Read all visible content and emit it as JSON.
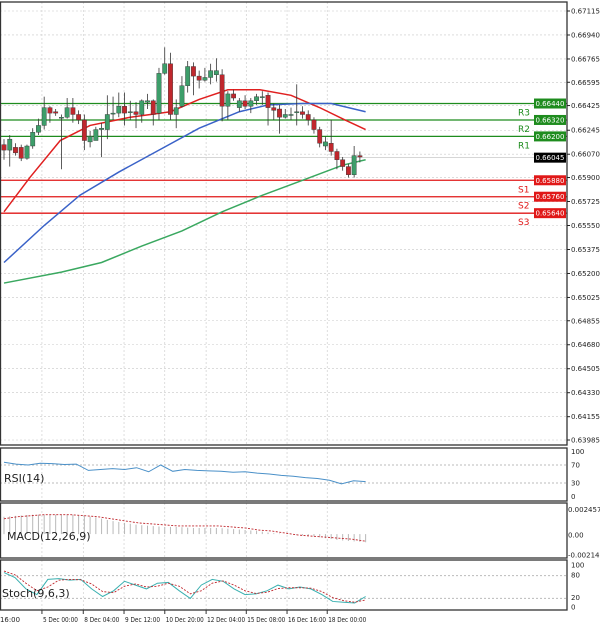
{
  "chart_data": {
    "type": "candlestick",
    "price_axis": {
      "ticks": [
        "0.67115",
        "0.66940",
        "0.66765",
        "0.66595",
        "0.66425",
        "0.66245",
        "0.66070",
        "0.65900",
        "0.65725",
        "0.65550",
        "0.65375",
        "0.65200",
        "0.65025",
        "0.64855",
        "0.64680",
        "0.64505",
        "0.64330",
        "0.64155",
        "0.63985"
      ],
      "range": [
        0.63985,
        0.67115
      ]
    },
    "time_axis": {
      "labels": [
        {
          "text": "16:00",
          "bar": 0
        },
        {
          "text": "5 Dec 00:00",
          "bar": 3.3
        },
        {
          "text": "8 Dec 04:00",
          "bar": 10.5
        },
        {
          "text": "9 Dec 12:00",
          "bar": 17.6
        },
        {
          "text": "10 Dec 20:00",
          "bar": 24.7
        },
        {
          "text": "12 Dec 04:00",
          "bar": 31.9
        },
        {
          "text": "15 Dec 08:00",
          "bar": 38.9
        },
        {
          "text": "16 Dec 16:00",
          "bar": 46
        },
        {
          "text": "18 Dec 00:00",
          "bar": 53
        }
      ]
    },
    "ohlc_columns": [
      "open",
      "high",
      "low",
      "close"
    ],
    "candles": [
      [
        0.6614,
        0.6618,
        0.6603,
        0.661
      ],
      [
        0.661,
        0.6621,
        0.6598,
        0.6618
      ],
      [
        0.6612,
        0.6615,
        0.6606,
        0.6608
      ],
      [
        0.6612,
        0.6614,
        0.6602,
        0.6604
      ],
      [
        0.6604,
        0.6614,
        0.6603,
        0.6613
      ],
      [
        0.6613,
        0.6626,
        0.6611,
        0.6623
      ],
      [
        0.6623,
        0.6633,
        0.6621,
        0.6628
      ],
      [
        0.6628,
        0.6649,
        0.6625,
        0.6641
      ],
      [
        0.6641,
        0.6642,
        0.663,
        0.6637
      ],
      [
        0.6638,
        0.664,
        0.6635,
        0.6637
      ],
      [
        0.6634,
        0.6636,
        0.6596,
        0.6634
      ],
      [
        0.6634,
        0.6648,
        0.6633,
        0.6641
      ],
      [
        0.6641,
        0.6648,
        0.663,
        0.6636
      ],
      [
        0.6636,
        0.6639,
        0.6629,
        0.6632
      ],
      [
        0.6632,
        0.6636,
        0.661,
        0.6617
      ],
      [
        0.6616,
        0.6624,
        0.6612,
        0.662
      ],
      [
        0.6617,
        0.6627,
        0.6617,
        0.6625
      ],
      [
        0.6625,
        0.663,
        0.6605,
        0.6626
      ],
      [
        0.6625,
        0.665,
        0.6618,
        0.6636
      ],
      [
        0.6637,
        0.6649,
        0.6632,
        0.6637
      ],
      [
        0.6637,
        0.6652,
        0.6634,
        0.6642
      ],
      [
        0.6642,
        0.6652,
        0.6628,
        0.6637
      ],
      [
        0.6638,
        0.6646,
        0.6632,
        0.6638
      ],
      [
        0.6638,
        0.6645,
        0.6626,
        0.6636
      ],
      [
        0.6636,
        0.6647,
        0.663,
        0.6646
      ],
      [
        0.6645,
        0.6651,
        0.664,
        0.6646
      ],
      [
        0.6646,
        0.6647,
        0.6628,
        0.6636
      ],
      [
        0.6637,
        0.667,
        0.6632,
        0.6666
      ],
      [
        0.6666,
        0.6685,
        0.6665,
        0.6673
      ],
      [
        0.6673,
        0.6681,
        0.6632,
        0.6636
      ],
      [
        0.6636,
        0.6647,
        0.6626,
        0.6641
      ],
      [
        0.6642,
        0.6664,
        0.6641,
        0.6657
      ],
      [
        0.6657,
        0.6675,
        0.6652,
        0.6671
      ],
      [
        0.6671,
        0.6674,
        0.665,
        0.6664
      ],
      [
        0.6664,
        0.6668,
        0.6655,
        0.6661
      ],
      [
        0.6661,
        0.667,
        0.666,
        0.6663
      ],
      [
        0.6663,
        0.6673,
        0.6658,
        0.6668
      ],
      [
        0.6665,
        0.6677,
        0.666,
        0.6668
      ],
      [
        0.6665,
        0.6669,
        0.6631,
        0.6642
      ],
      [
        0.6642,
        0.6653,
        0.6632,
        0.6651
      ],
      [
        0.6651,
        0.6654,
        0.6646,
        0.6648
      ],
      [
        0.6641,
        0.6648,
        0.6638,
        0.6646
      ],
      [
        0.6646,
        0.665,
        0.664,
        0.6642
      ],
      [
        0.6642,
        0.6648,
        0.6637,
        0.6646
      ],
      [
        0.6646,
        0.6651,
        0.6643,
        0.6649
      ],
      [
        0.6649,
        0.6653,
        0.6643,
        0.6649
      ],
      [
        0.665,
        0.6652,
        0.6628,
        0.6641
      ],
      [
        0.6641,
        0.6644,
        0.6632,
        0.6639
      ],
      [
        0.664,
        0.6643,
        0.6622,
        0.6634
      ],
      [
        0.6634,
        0.664,
        0.6633,
        0.6636
      ],
      [
        0.6636,
        0.6641,
        0.6632,
        0.6636
      ],
      [
        0.6638,
        0.6658,
        0.6628,
        0.6638
      ],
      [
        0.6638,
        0.6642,
        0.6633,
        0.6636
      ],
      [
        0.6636,
        0.6639,
        0.6628,
        0.6632
      ],
      [
        0.6632,
        0.6634,
        0.6622,
        0.6625
      ],
      [
        0.6625,
        0.6627,
        0.6612,
        0.6615
      ],
      [
        0.6613,
        0.662,
        0.661,
        0.6616
      ],
      [
        0.6615,
        0.6632,
        0.6606,
        0.6609
      ],
      [
        0.6609,
        0.6611,
        0.6596,
        0.6603
      ],
      [
        0.6603,
        0.6605,
        0.6595,
        0.6598
      ],
      [
        0.6598,
        0.66,
        0.659,
        0.6592
      ],
      [
        0.6592,
        0.6613,
        0.659,
        0.6606
      ],
      [
        0.6606,
        0.6609,
        0.6601,
        0.6605
      ]
    ],
    "moving_averages": [
      {
        "color": "#e02020",
        "points": [
          [
            0,
            0.6565
          ],
          [
            4.5,
            0.659
          ],
          [
            9.8,
            0.6617
          ],
          [
            15,
            0.6628
          ],
          [
            22,
            0.6634
          ],
          [
            29,
            0.6638
          ],
          [
            34,
            0.6647
          ],
          [
            39,
            0.6654
          ],
          [
            44.6,
            0.6654
          ],
          [
            50,
            0.665
          ],
          [
            55,
            0.6641
          ],
          [
            59.4,
            0.6632
          ],
          [
            63,
            0.6625
          ]
        ]
      },
      {
        "color": "#3a62c8",
        "points": [
          [
            0,
            0.6528
          ],
          [
            7,
            0.6555
          ],
          [
            13.2,
            0.6577
          ],
          [
            20,
            0.6594
          ],
          [
            27,
            0.661
          ],
          [
            34,
            0.6626
          ],
          [
            41,
            0.6638
          ],
          [
            46,
            0.6643
          ],
          [
            52,
            0.6644
          ],
          [
            57,
            0.6644
          ],
          [
            63,
            0.6638
          ]
        ]
      },
      {
        "color": "#3aa860",
        "points": [
          [
            0,
            0.6513
          ],
          [
            10,
            0.6521
          ],
          [
            17,
            0.6528
          ],
          [
            24,
            0.654
          ],
          [
            31,
            0.6551
          ],
          [
            38,
            0.6565
          ],
          [
            45,
            0.6577
          ],
          [
            52,
            0.6588
          ],
          [
            59,
            0.6599
          ],
          [
            63,
            0.6603
          ]
        ]
      }
    ],
    "levels": [
      {
        "label": "R3",
        "price": "0.66440",
        "color": "#1e8c1e"
      },
      {
        "label": "R2",
        "price": "0.66320",
        "color": "#1e8c1e"
      },
      {
        "label": "R1",
        "price": "0.66200",
        "color": "#1e8c1e"
      },
      {
        "label": "S1",
        "price": "0.65880",
        "color": "#e01818"
      },
      {
        "label": "S2",
        "price": "0.65760",
        "color": "#e01818"
      },
      {
        "label": "S3",
        "price": "0.65640",
        "color": "#e01818"
      }
    ],
    "current_price": "0.66045",
    "colors": {
      "bull": "#3d9e6a",
      "bear": "#c0272d",
      "grid": "#c8c8c8"
    },
    "indicators": {
      "rsi": {
        "label": "RSI(14)",
        "axis": [
          "100",
          "70",
          "30",
          "0"
        ],
        "color": "#4a90c8",
        "values": [
          76,
          72,
          70,
          74,
          73,
          71,
          72,
          58,
          60,
          62,
          60,
          64,
          55,
          70,
          56,
          60,
          58,
          57,
          56,
          54,
          55,
          52,
          50,
          47,
          45,
          42,
          40,
          36,
          28,
          35,
          33
        ]
      },
      "macd": {
        "label": "MACD(12,26,9)",
        "axis": [
          "0.002457",
          "0.00",
          "-0.002146"
        ],
        "range": [
          -0.002146,
          0.002457
        ],
        "histogram": [
          0.0017,
          0.0018,
          0.0019,
          0.0019,
          0.0019,
          0.0019,
          0.0018,
          0.0016,
          0.0013,
          0.0011,
          0.0009,
          0.0008,
          0.0007,
          0.0007,
          0.0006,
          0.0006,
          0.0006,
          0.0005,
          0.0004,
          0.0003,
          0.0001,
          0.0,
          -0.0001,
          -0.0002,
          -0.0004,
          -0.0006,
          -0.0007,
          -0.0008
        ],
        "signal": [
          0.0015,
          0.0017,
          0.0018,
          0.0019,
          0.0019,
          0.0019,
          0.0018,
          0.0017,
          0.0015,
          0.0013,
          0.0011,
          0.001,
          0.0009,
          0.0008,
          0.0008,
          0.0008,
          0.0008,
          0.0007,
          0.0006,
          0.0004,
          0.0003,
          0.0001,
          -0.0001,
          -0.0002,
          -0.0003,
          -0.0004,
          -0.0005,
          -0.0007
        ],
        "signal_color": "#c0272d",
        "histogram_color": "#b8b8b8"
      },
      "stoch": {
        "label": "Stoch(9,6,3)",
        "axis": [
          "100",
          "80",
          "20",
          "0"
        ],
        "main": [
          88,
          75,
          45,
          30,
          70,
          72,
          68,
          70,
          45,
          25,
          40,
          65,
          55,
          45,
          60,
          62,
          40,
          20,
          55,
          70,
          65,
          45,
          30,
          32,
          40,
          55,
          45,
          50,
          45,
          30,
          12,
          10,
          8,
          25
        ],
        "signal": [
          92,
          82,
          60,
          40,
          50,
          68,
          70,
          69,
          58,
          38,
          35,
          52,
          58,
          50,
          52,
          60,
          52,
          32,
          40,
          60,
          66,
          55,
          40,
          33,
          36,
          46,
          48,
          48,
          47,
          38,
          22,
          14,
          10,
          16
        ],
        "main_color": "#3ab0b0",
        "signal_color": "#c0272d"
      }
    }
  }
}
